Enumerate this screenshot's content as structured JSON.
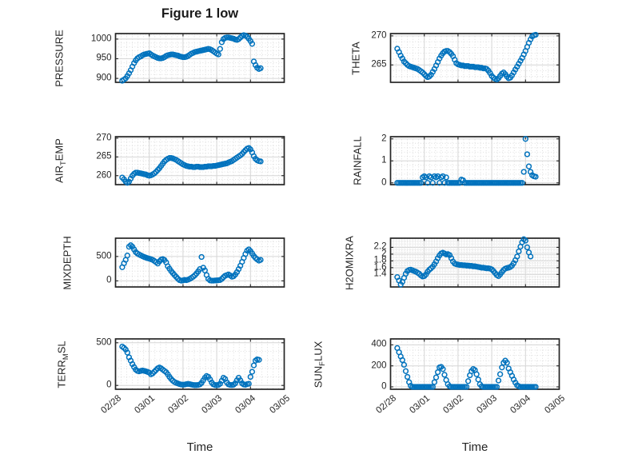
{
  "figure": {
    "title": "Figure 1 low",
    "xlabel": "Time",
    "background": "#ffffff",
    "marker_color": "#0072BD",
    "axes_color": "#252525",
    "grid_color": "#d6d6d6",
    "minor_grid_color": "#dadada"
  },
  "chart_data": {
    "type": "scatter",
    "marker": "o",
    "x_unit": "days since 02/28 00:00",
    "xlim": [
      0,
      5
    ],
    "xticks": {
      "values": [
        0,
        1,
        2,
        3,
        4,
        5
      ],
      "labels": [
        "02/28",
        "03/01",
        "03/02",
        "03/03",
        "03/04",
        "03/05"
      ]
    },
    "x": [
      0.2,
      0.25,
      0.3,
      0.35,
      0.4,
      0.45,
      0.5,
      0.55,
      0.6,
      0.65,
      0.7,
      0.75,
      0.8,
      0.85,
      0.9,
      0.95,
      1,
      1.05,
      1.1,
      1.15,
      1.2,
      1.25,
      1.3,
      1.35,
      1.4,
      1.45,
      1.5,
      1.55,
      1.6,
      1.65,
      1.7,
      1.75,
      1.8,
      1.85,
      1.9,
      1.95,
      2,
      2.05,
      2.1,
      2.15,
      2.2,
      2.25,
      2.3,
      2.35,
      2.4,
      2.45,
      2.5,
      2.55,
      2.6,
      2.65,
      2.7,
      2.75,
      2.8,
      2.85,
      2.9,
      2.95,
      3,
      3.05,
      3.1,
      3.15,
      3.2,
      3.25,
      3.3,
      3.35,
      3.4,
      3.45,
      3.5,
      3.55,
      3.6,
      3.65,
      3.7,
      3.75,
      3.8,
      3.85,
      3.9,
      3.95,
      4,
      4.05,
      4.1,
      4.15,
      4.2,
      4.25,
      4.3
    ],
    "subplots": [
      {
        "id": "pressure",
        "row": 0,
        "col": 0,
        "ylabel_parts": [
          {
            "text": "PRESSURE",
            "sub": false
          }
        ],
        "ylim": [
          890,
          1014
        ],
        "yticks": [
          900,
          950,
          1000
        ],
        "yminor": 10,
        "xminor": 0.1667,
        "y": [
          894,
          897,
          900,
          906,
          913,
          921,
          930,
          939,
          946,
          951,
          954,
          956,
          959,
          961,
          962,
          963,
          964,
          961,
          958,
          956,
          954,
          952,
          951,
          951,
          952,
          954,
          957,
          959,
          960,
          961,
          961,
          960,
          959,
          958,
          956,
          955,
          954,
          954,
          955,
          957,
          960,
          963,
          965,
          967,
          968,
          969,
          970,
          971,
          972,
          973,
          974,
          975,
          974,
          972,
          969,
          966,
          963,
          961,
          975,
          992,
          1000,
          1003,
          1004,
          1004,
          1003,
          1002,
          1001,
          999,
          998,
          1000,
          1004,
          1008,
          1010,
          1009,
          1006,
          1001,
          995,
          988,
          943,
          934,
          927,
          924,
          926
        ]
      },
      {
        "id": "theta",
        "row": 0,
        "col": 1,
        "ylabel_parts": [
          {
            "text": "THETA",
            "sub": false
          }
        ],
        "ylim": [
          262,
          270.4
        ],
        "yticks": [
          265,
          270
        ],
        "yminor": 1,
        "xminor": 0.1667,
        "y": [
          267.8,
          267.2,
          266.6,
          266.1,
          265.6,
          265.3,
          265.0,
          264.8,
          264.7,
          264.6,
          264.5,
          264.4,
          264.3,
          264.1,
          263.9,
          263.7,
          263.4,
          263.1,
          262.9,
          263.0,
          263.3,
          263.8,
          264.3,
          264.9,
          265.5,
          266.1,
          266.6,
          267.0,
          267.3,
          267.4,
          267.4,
          267.2,
          266.9,
          266.5,
          265.9,
          265.3,
          265.1,
          265.0,
          264.9,
          264.9,
          264.8,
          264.8,
          264.8,
          264.7,
          264.7,
          264.7,
          264.6,
          264.6,
          264.6,
          264.5,
          264.5,
          264.4,
          264.4,
          264.3,
          264.0,
          263.6,
          263.1,
          262.8,
          262.6,
          262.5,
          262.7,
          263.1,
          263.5,
          263.7,
          263.4,
          263.0,
          262.7,
          262.8,
          263.2,
          263.7,
          264.2,
          264.7,
          265.2,
          265.7,
          266.2,
          266.8,
          267.4,
          268.1,
          268.8,
          269.4,
          269.9,
          270.1,
          270.2
        ]
      },
      {
        "id": "air_temp",
        "row": 1,
        "col": 0,
        "ylabel_parts": [
          {
            "text": "AIR",
            "sub": false
          },
          {
            "text": "T",
            "sub": true
          },
          {
            "text": "EMP",
            "sub": false
          }
        ],
        "ylim": [
          257.6,
          270.4
        ],
        "yticks": [
          260,
          265,
          270
        ],
        "yminor": 1,
        "xminor": 0.1667,
        "y": [
          259.5,
          259.0,
          258.4,
          258.1,
          258.4,
          259.2,
          260.0,
          260.5,
          260.8,
          260.8,
          260.7,
          260.6,
          260.5,
          260.4,
          260.3,
          260.1,
          260.0,
          260.1,
          260.3,
          260.6,
          261.0,
          261.5,
          262.0,
          262.6,
          263.2,
          263.8,
          264.2,
          264.5,
          264.7,
          264.7,
          264.6,
          264.4,
          264.2,
          263.9,
          263.6,
          263.3,
          263.0,
          262.8,
          262.6,
          262.5,
          262.4,
          262.4,
          262.3,
          262.3,
          262.4,
          262.4,
          262.3,
          262.3,
          262.3,
          262.4,
          262.4,
          262.5,
          262.5,
          262.5,
          262.6,
          262.6,
          262.7,
          262.8,
          262.9,
          263.0,
          263.1,
          263.2,
          263.3,
          263.5,
          263.7,
          263.9,
          264.2,
          264.5,
          264.8,
          265.1,
          265.4,
          265.8,
          266.3,
          266.8,
          267.2,
          267.4,
          267.0,
          266.2,
          265.2,
          264.5,
          264.1,
          263.9,
          263.8
        ]
      },
      {
        "id": "rainfall",
        "row": 1,
        "col": 1,
        "ylabel_parts": [
          {
            "text": "RAINFALL",
            "sub": false
          }
        ],
        "ylim": [
          -0.08,
          2.1
        ],
        "yticks": [
          0,
          1,
          2
        ],
        "yminor": 0.2,
        "xminor": 0.1667,
        "y": [
          0,
          0,
          0,
          0,
          0,
          0,
          0,
          0,
          0,
          0,
          0,
          0,
          0,
          0,
          0,
          0.25,
          0.3,
          0.25,
          0,
          0.3,
          0.25,
          0,
          0.3,
          0.25,
          0.3,
          0,
          0.25,
          0.3,
          0,
          0.25,
          0,
          0,
          0,
          0,
          0,
          0,
          0,
          0,
          0.15,
          0.12,
          0,
          0,
          0,
          0,
          0,
          0,
          0,
          0,
          0,
          0,
          0,
          0,
          0,
          0,
          0,
          0,
          0,
          0,
          0,
          0,
          0,
          0,
          0,
          0,
          0,
          0,
          0,
          0,
          0,
          0,
          0,
          0,
          0,
          0,
          0,
          0.5,
          2.0,
          1.3,
          0.75,
          0.5,
          0.35,
          0.3,
          0.28
        ]
      },
      {
        "id": "mixdepth",
        "row": 2,
        "col": 0,
        "ylabel_parts": [
          {
            "text": "MIXDEPTH",
            "sub": false
          }
        ],
        "ylim": [
          -125,
          875
        ],
        "yticks": [
          0,
          500
        ],
        "yminor": 100,
        "xminor": 0.1667,
        "y": [
          280,
          360,
          430,
          520,
          700,
          730,
          700,
          645,
          590,
          560,
          540,
          522,
          505,
          490,
          476,
          465,
          455,
          444,
          430,
          410,
          385,
          355,
          400,
          435,
          445,
          428,
          380,
          300,
          248,
          200,
          158,
          118,
          80,
          42,
          15,
          5,
          10,
          20,
          15,
          25,
          40,
          60,
          85,
          115,
          150,
          195,
          240,
          490,
          270,
          215,
          120,
          40,
          10,
          5,
          5,
          8,
          10,
          12,
          18,
          40,
          75,
          105,
          120,
          130,
          110,
          85,
          95,
          130,
          180,
          240,
          310,
          390,
          470,
          550,
          620,
          645,
          610,
          560,
          510,
          470,
          440,
          415,
          430
        ]
      },
      {
        "id": "h2omixra",
        "row": 2,
        "col": 1,
        "ylabel_parts": [
          {
            "text": "H2OMIXRA",
            "sub": false
          }
        ],
        "ylim": [
          1.03,
          2.47
        ],
        "yticks": [
          1.4,
          1.6,
          1.8,
          2,
          2.2
        ],
        "yminor": 0.05,
        "xminor": 0.05,
        "y": [
          1.32,
          1.22,
          1.1,
          1.18,
          1.3,
          1.42,
          1.5,
          1.53,
          1.54,
          1.52,
          1.5,
          1.48,
          1.45,
          1.42,
          1.37,
          1.34,
          1.35,
          1.4,
          1.48,
          1.54,
          1.58,
          1.63,
          1.7,
          1.78,
          1.88,
          1.96,
          2.02,
          2.04,
          2.02,
          1.99,
          2.0,
          1.97,
          1.88,
          1.78,
          1.72,
          1.7,
          1.69,
          1.68,
          1.68,
          1.67,
          1.67,
          1.66,
          1.66,
          1.65,
          1.65,
          1.64,
          1.64,
          1.63,
          1.62,
          1.61,
          1.6,
          1.6,
          1.59,
          1.58,
          1.58,
          1.57,
          1.55,
          1.5,
          1.44,
          1.38,
          1.35,
          1.4,
          1.47,
          1.53,
          1.57,
          1.59,
          1.6,
          1.62,
          1.66,
          1.73,
          1.82,
          1.93,
          2.08,
          2.22,
          2.35,
          2.44,
          2.4,
          2.2,
          2.05,
          1.93,
          null,
          null,
          null
        ]
      },
      {
        "id": "terr_msl",
        "row": 3,
        "col": 0,
        "ylabel_parts": [
          {
            "text": "TERR",
            "sub": false
          },
          {
            "text": "M",
            "sub": true
          },
          {
            "text": "SL",
            "sub": false
          }
        ],
        "ylim": [
          -45,
          545
        ],
        "yticks": [
          0,
          500
        ],
        "yminor": 100,
        "xminor": 0.1667,
        "y": [
          455,
          440,
          420,
          385,
          330,
          290,
          250,
          215,
          185,
          170,
          165,
          170,
          175,
          170,
          165,
          158,
          150,
          130,
          140,
          160,
          180,
          200,
          210,
          200,
          185,
          170,
          155,
          130,
          100,
          75,
          55,
          40,
          30,
          22,
          15,
          10,
          8,
          10,
          15,
          18,
          15,
          10,
          6,
          4,
          4,
          6,
          12,
          30,
          60,
          90,
          110,
          100,
          70,
          35,
          12,
          5,
          4,
          6,
          20,
          55,
          90,
          75,
          35,
          12,
          6,
          5,
          8,
          25,
          60,
          90,
          60,
          25,
          10,
          8,
          15,
          20,
          100,
          160,
          235,
          290,
          305,
          300,
          null
        ]
      },
      {
        "id": "sun_flux",
        "row": 3,
        "col": 1,
        "ylabel_parts": [
          {
            "text": "SUN",
            "sub": false
          },
          {
            "text": "F",
            "sub": true
          },
          {
            "text": "LUX",
            "sub": false
          }
        ],
        "ylim": [
          -23,
          457
        ],
        "yticks": [
          0,
          200,
          400
        ],
        "yminor": 50,
        "xminor": 0.1667,
        "y": [
          370,
          330,
          290,
          255,
          210,
          150,
          95,
          45,
          10,
          0,
          0,
          0,
          0,
          0,
          0,
          0,
          0,
          0,
          0,
          0,
          0,
          0,
          45,
          90,
          140,
          185,
          190,
          170,
          115,
          65,
          25,
          5,
          0,
          0,
          0,
          0,
          0,
          0,
          0,
          0,
          0,
          0,
          55,
          110,
          150,
          170,
          160,
          120,
          70,
          25,
          5,
          0,
          0,
          0,
          0,
          0,
          0,
          0,
          0,
          0,
          60,
          120,
          185,
          230,
          250,
          230,
          175,
          140,
          105,
          70,
          40,
          15,
          5,
          0,
          0,
          0,
          0,
          0,
          0,
          0,
          0,
          0,
          0
        ]
      }
    ]
  }
}
